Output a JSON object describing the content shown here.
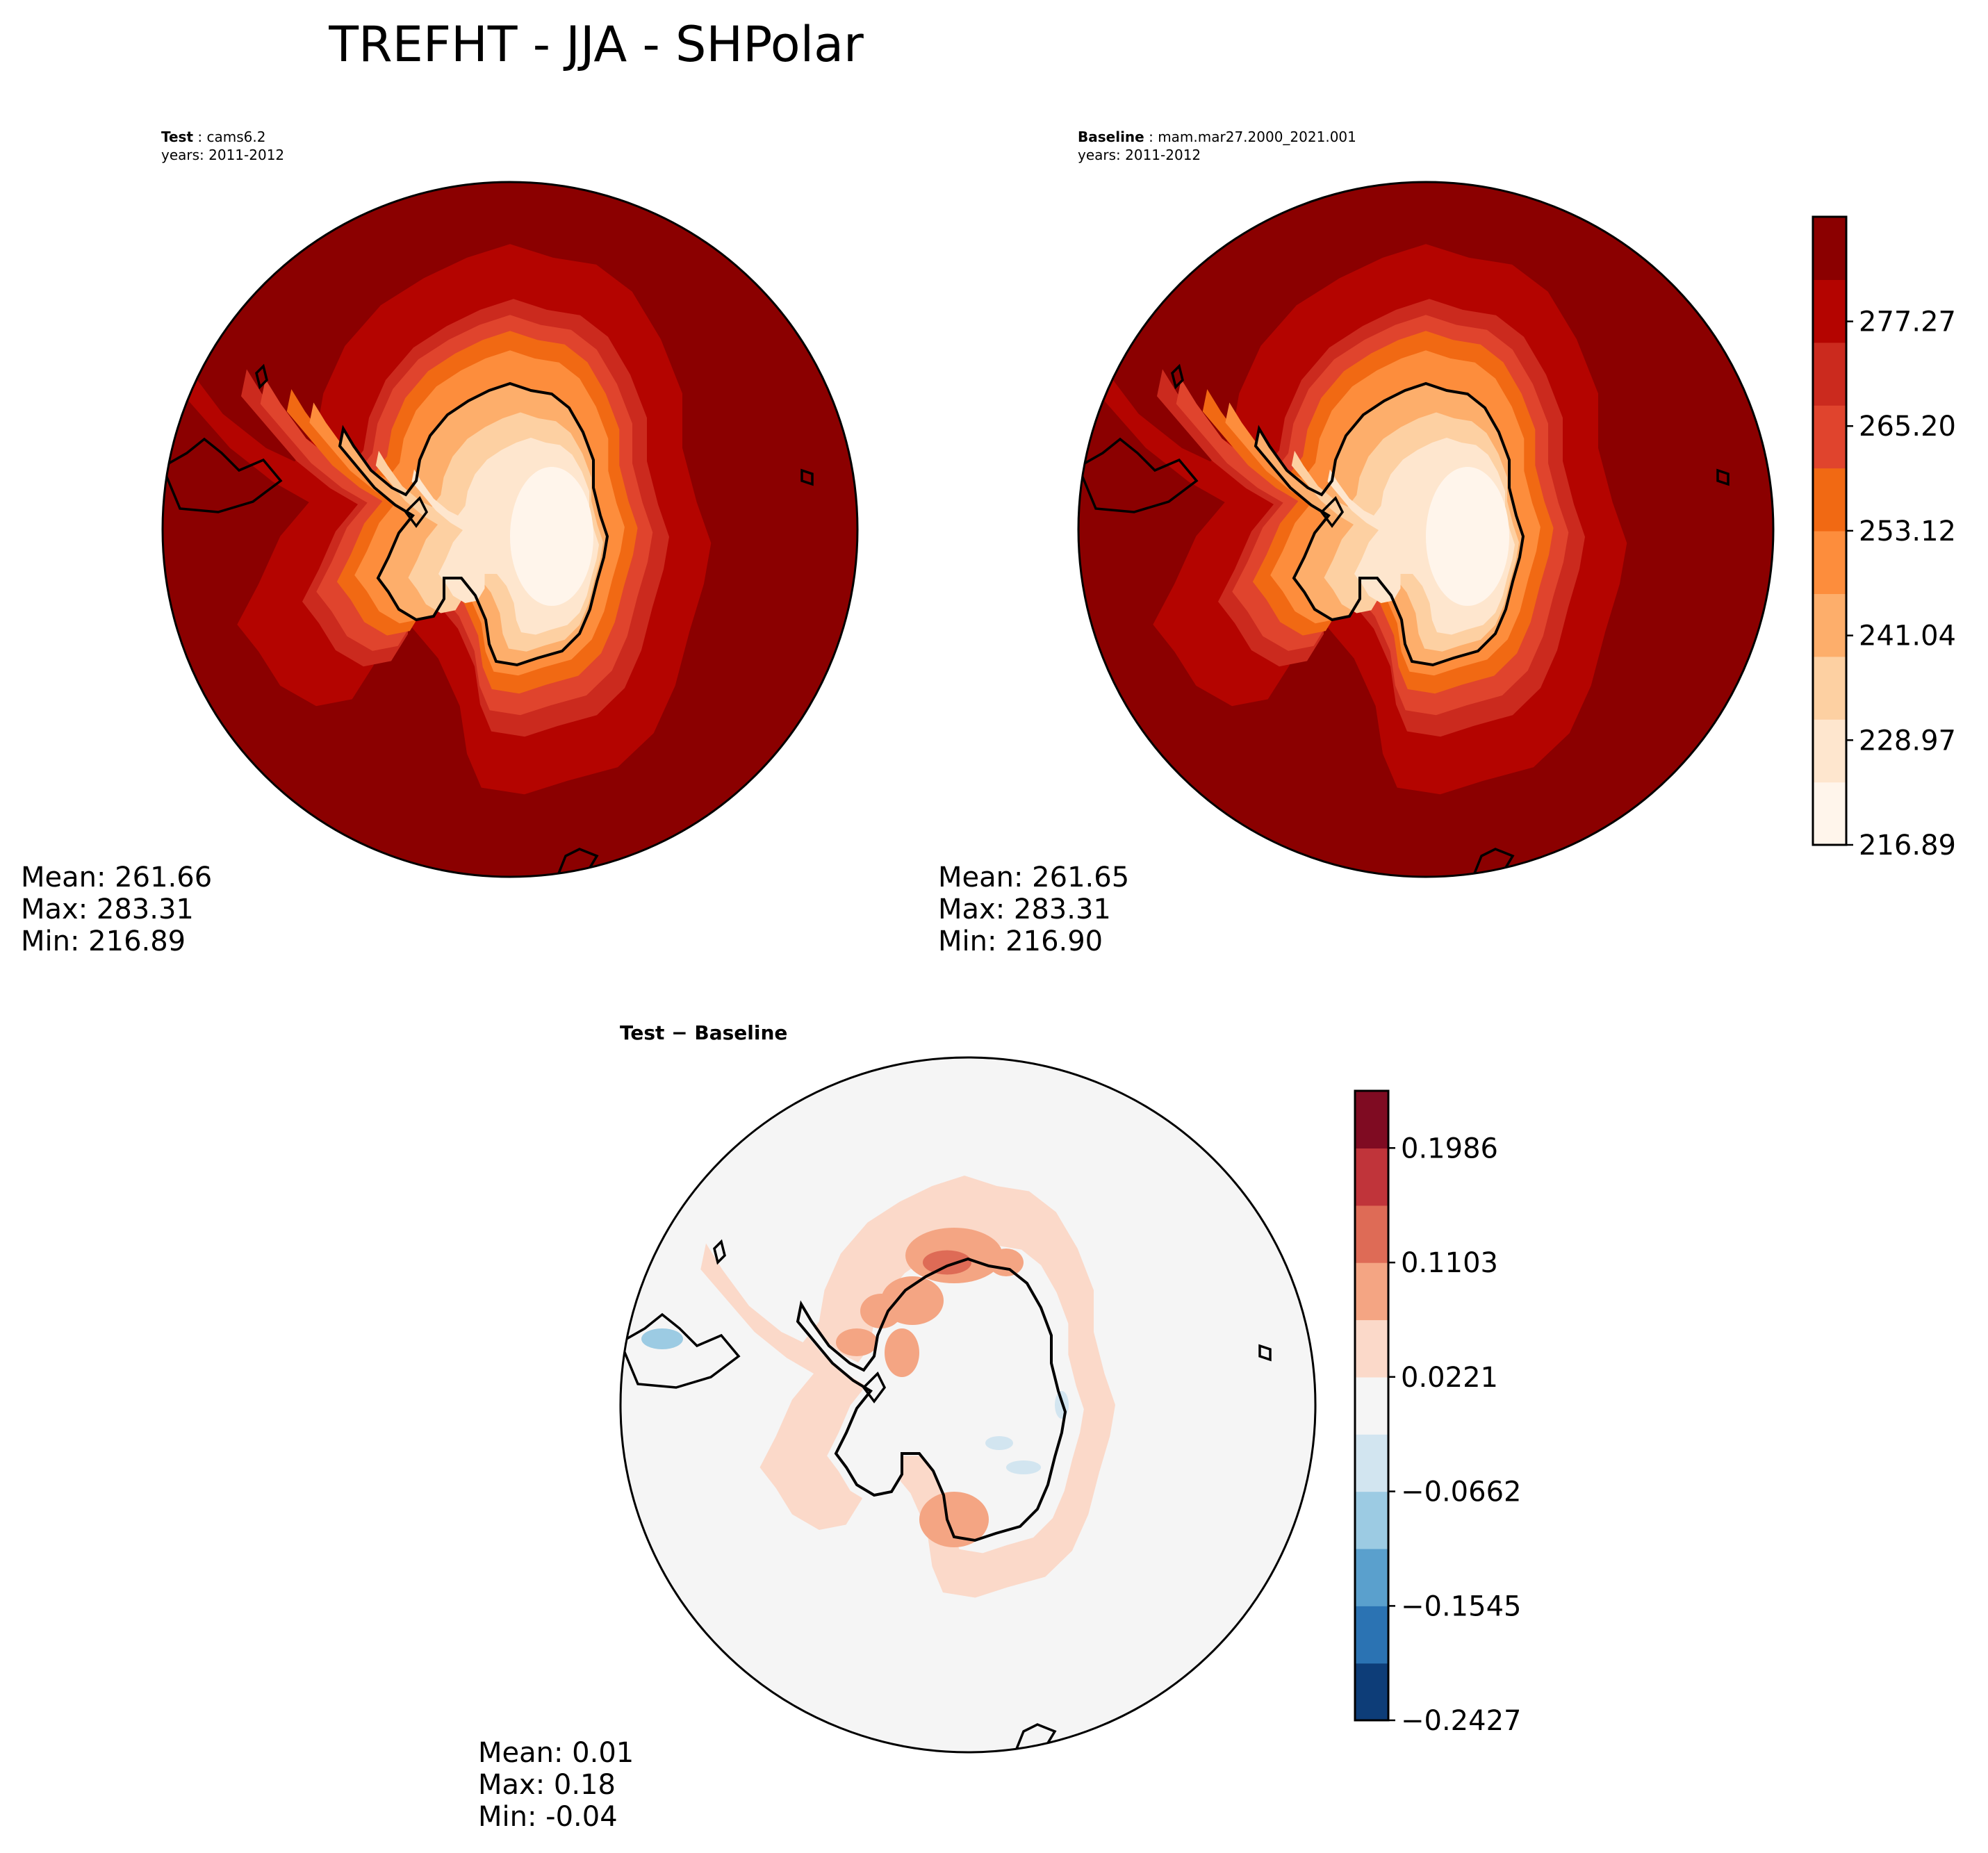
{
  "figure_title": "TREFHT - JJA - SHPolar",
  "panels": [
    {
      "id": "test",
      "label": "Test",
      "case": "cams6.2",
      "years": "years: 2011-2012",
      "stats": {
        "mean": "Mean: 261.66",
        "max": "Max: 283.31",
        "min": "Min: 216.89"
      }
    },
    {
      "id": "baseline",
      "label": "Baseline",
      "case": "mam.mar27.2000_2021.001",
      "years": "years: 2011-2012",
      "stats": {
        "mean": "Mean: 261.65",
        "max": "Max: 283.31",
        "min": "Min: 216.90"
      }
    },
    {
      "id": "diff",
      "title": "Test − Baseline",
      "stats": {
        "mean": "Mean:  0.01",
        "max": "Max:  0.18",
        "min": "Min: -0.04"
      }
    }
  ],
  "colors": {
    "field_levels": [
      "#fff5eb",
      "#fee6ce",
      "#fdd0a2",
      "#fdae6b",
      "#fd8d3c",
      "#f16913",
      "#e0442d",
      "#cb2a1e",
      "#b40400",
      "#8b0000"
    ],
    "diff_levels": [
      "#0d3d78",
      "#2b73b3",
      "#5aa0cd",
      "#9ccbe3",
      "#d2e5f0",
      "#f5f5f5",
      "#fbd9c9",
      "#f4a583",
      "#de6b56",
      "#c0343a",
      "#7f0b22"
    ]
  },
  "chart_data": [
    {
      "type": "heatmap",
      "title": "TREFHT - JJA - SHPolar",
      "colorbar": {
        "range": [
          216.89,
          289.34
        ],
        "ticks": [
          216.89,
          228.97,
          241.04,
          253.12,
          265.2,
          277.27
        ],
        "tick_labels": [
          "216.89",
          "228.97",
          "241.04",
          "253.12",
          "265.20",
          "277.27"
        ]
      }
    },
    {
      "type": "heatmap",
      "title": "Test − Baseline",
      "colorbar": {
        "range": [
          -0.2427,
          0.2427
        ],
        "ticks": [
          -0.2427,
          -0.1545,
          -0.0662,
          0.0221,
          0.1103,
          0.1986
        ],
        "tick_labels": [
          "−0.2427",
          "−0.1545",
          "−0.0662",
          "0.0221",
          "0.1103",
          "0.1986"
        ]
      }
    }
  ]
}
